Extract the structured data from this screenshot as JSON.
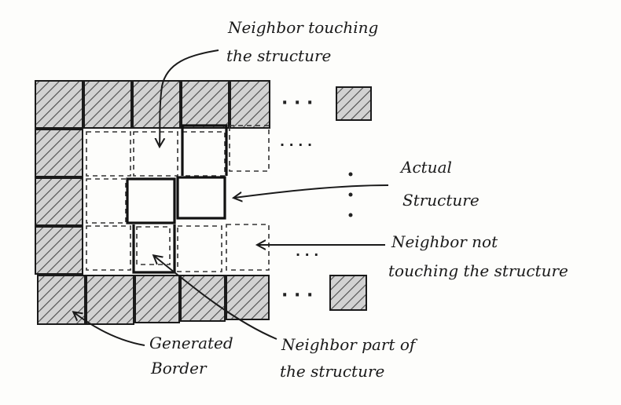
{
  "diagram": {
    "labels": {
      "neighbor_touching_line1": "Neighbor touching",
      "neighbor_touching_line2": "the structure",
      "actual_structure_line1": "Actual",
      "actual_structure_line2": "Structure",
      "neighbor_not_touching_line1": "Neighbor not",
      "neighbor_not_touching_line2": "touching the structure",
      "generated_border_line1": "Generated",
      "generated_border_line2": "Border",
      "neighbor_part_line1": "Neighbor part of",
      "neighbor_part_line2": "the structure"
    },
    "ellipsis": {
      "row_top": "· · ·",
      "row_second": "· · · ·",
      "row_fourth": "· · ·",
      "row_bottom": "· · ·"
    },
    "colors": {
      "ink": "#1a1a1a",
      "hatch_fill": "#d4d4d4",
      "paper": "#fdfdfb"
    }
  }
}
